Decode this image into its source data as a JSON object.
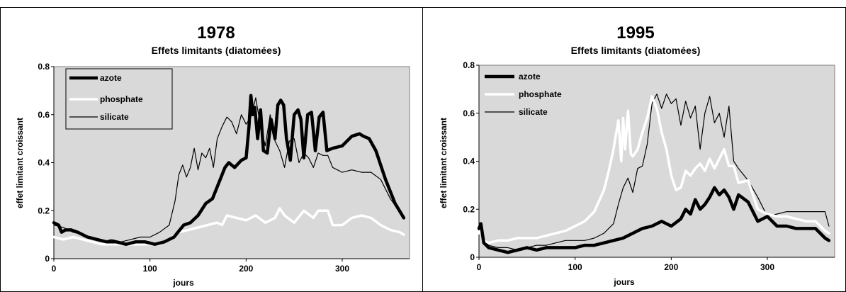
{
  "chart_data": [
    {
      "type": "line",
      "title": "1978",
      "subtitle": "Effets limitants (diatomées)",
      "xlabel": "jours",
      "ylabel": "effet limitant croissant",
      "xlim": [
        0,
        370
      ],
      "ylim": [
        0,
        0.8
      ],
      "xticks": [
        "0",
        "100",
        "200",
        "300"
      ],
      "yticks": [
        "0",
        "0.2",
        "0.4",
        "0.6",
        "0.8"
      ],
      "plot_background": "#d9d9d9",
      "grid": false,
      "legend_position": "top-left",
      "series": [
        {
          "name": "azote",
          "color": "#000000",
          "width": 4.5,
          "x": [
            0,
            5,
            8,
            12,
            18,
            25,
            35,
            45,
            55,
            65,
            75,
            85,
            95,
            105,
            115,
            125,
            135,
            142,
            150,
            158,
            165,
            172,
            178,
            182,
            188,
            195,
            200,
            203,
            205,
            207,
            209,
            212,
            215,
            218,
            222,
            226,
            230,
            233,
            236,
            239,
            242,
            246,
            250,
            254,
            257,
            260,
            264,
            268,
            272,
            276,
            280,
            284,
            290,
            300,
            310,
            318,
            322,
            328,
            335,
            345,
            355,
            364
          ],
          "y": [
            0.15,
            0.14,
            0.11,
            0.12,
            0.12,
            0.11,
            0.09,
            0.08,
            0.07,
            0.07,
            0.06,
            0.07,
            0.07,
            0.06,
            0.07,
            0.09,
            0.14,
            0.15,
            0.18,
            0.23,
            0.25,
            0.32,
            0.38,
            0.4,
            0.38,
            0.41,
            0.42,
            0.55,
            0.68,
            0.6,
            0.63,
            0.5,
            0.62,
            0.45,
            0.44,
            0.58,
            0.5,
            0.64,
            0.66,
            0.64,
            0.5,
            0.41,
            0.6,
            0.62,
            0.58,
            0.42,
            0.6,
            0.61,
            0.45,
            0.59,
            0.61,
            0.45,
            0.46,
            0.47,
            0.51,
            0.52,
            0.51,
            0.5,
            0.45,
            0.33,
            0.23,
            0.17
          ]
        },
        {
          "name": "phosphate",
          "color": "#ffffff",
          "width": 3.5,
          "x": [
            0,
            10,
            20,
            30,
            40,
            50,
            60,
            70,
            80,
            90,
            100,
            110,
            120,
            130,
            140,
            150,
            160,
            170,
            175,
            180,
            190,
            200,
            210,
            220,
            230,
            235,
            240,
            250,
            260,
            270,
            275,
            280,
            285,
            290,
            300,
            310,
            320,
            330,
            340,
            350,
            360,
            364
          ],
          "y": [
            0.09,
            0.08,
            0.09,
            0.08,
            0.07,
            0.06,
            0.06,
            0.06,
            0.06,
            0.06,
            0.06,
            0.06,
            0.08,
            0.11,
            0.12,
            0.13,
            0.14,
            0.15,
            0.14,
            0.18,
            0.17,
            0.16,
            0.18,
            0.15,
            0.17,
            0.21,
            0.18,
            0.15,
            0.2,
            0.17,
            0.2,
            0.2,
            0.2,
            0.14,
            0.14,
            0.17,
            0.18,
            0.17,
            0.14,
            0.12,
            0.11,
            0.1
          ]
        },
        {
          "name": "silicate",
          "color": "#000000",
          "width": 1.2,
          "x": [
            0,
            10,
            20,
            30,
            40,
            50,
            60,
            70,
            80,
            90,
            100,
            110,
            120,
            126,
            130,
            134,
            138,
            142,
            146,
            150,
            154,
            158,
            162,
            166,
            170,
            175,
            180,
            185,
            190,
            195,
            200,
            205,
            210,
            215,
            220,
            225,
            230,
            235,
            240,
            245,
            250,
            255,
            260,
            265,
            270,
            275,
            280,
            285,
            290,
            300,
            310,
            320,
            330,
            340,
            350,
            364
          ],
          "y": [
            0.14,
            0.13,
            0.11,
            0.1,
            0.08,
            0.07,
            0.08,
            0.07,
            0.08,
            0.09,
            0.09,
            0.11,
            0.14,
            0.24,
            0.35,
            0.39,
            0.34,
            0.38,
            0.46,
            0.37,
            0.44,
            0.42,
            0.46,
            0.38,
            0.5,
            0.55,
            0.59,
            0.57,
            0.52,
            0.6,
            0.56,
            0.59,
            0.67,
            0.55,
            0.47,
            0.6,
            0.49,
            0.45,
            0.38,
            0.49,
            0.5,
            0.4,
            0.44,
            0.42,
            0.38,
            0.44,
            0.43,
            0.43,
            0.38,
            0.36,
            0.37,
            0.36,
            0.36,
            0.33,
            0.25,
            0.17
          ]
        }
      ]
    },
    {
      "type": "line",
      "title": "1995",
      "subtitle": "Effets limitants (diatomées)",
      "xlabel": "jours",
      "ylabel": "effet limitant croissant",
      "xlim": [
        0,
        370
      ],
      "ylim": [
        0,
        0.8
      ],
      "xticks": [
        "0",
        "100",
        "200",
        "300"
      ],
      "yticks": [
        "0",
        "0.2",
        "0.4",
        "0.6",
        "0.8"
      ],
      "plot_background": "#d9d9d9",
      "grid": false,
      "legend_position": "top-left",
      "series": [
        {
          "name": "azote",
          "color": "#000000",
          "width": 4.5,
          "x": [
            0,
            2,
            5,
            10,
            20,
            30,
            40,
            50,
            60,
            70,
            80,
            90,
            100,
            110,
            120,
            130,
            140,
            150,
            160,
            170,
            180,
            190,
            200,
            210,
            215,
            220,
            225,
            230,
            235,
            240,
            245,
            250,
            255,
            260,
            265,
            270,
            280,
            290,
            300,
            310,
            320,
            330,
            340,
            350,
            360,
            364
          ],
          "y": [
            0.12,
            0.14,
            0.06,
            0.04,
            0.03,
            0.02,
            0.03,
            0.04,
            0.03,
            0.04,
            0.04,
            0.04,
            0.04,
            0.05,
            0.05,
            0.06,
            0.07,
            0.08,
            0.1,
            0.12,
            0.13,
            0.15,
            0.13,
            0.16,
            0.2,
            0.18,
            0.24,
            0.2,
            0.22,
            0.25,
            0.29,
            0.26,
            0.28,
            0.25,
            0.2,
            0.26,
            0.23,
            0.15,
            0.17,
            0.13,
            0.13,
            0.12,
            0.12,
            0.12,
            0.08,
            0.07
          ]
        },
        {
          "name": "phosphate",
          "color": "#ffffff",
          "width": 3.5,
          "x": [
            0,
            2,
            5,
            10,
            20,
            30,
            40,
            50,
            60,
            70,
            80,
            90,
            100,
            110,
            120,
            130,
            135,
            140,
            145,
            148,
            150,
            152,
            155,
            158,
            160,
            165,
            170,
            175,
            180,
            185,
            190,
            195,
            200,
            205,
            210,
            215,
            220,
            225,
            230,
            235,
            240,
            245,
            250,
            255,
            260,
            265,
            270,
            280,
            290,
            300,
            310,
            320,
            330,
            340,
            350,
            360,
            364
          ],
          "y": [
            0.1,
            0.12,
            0.07,
            0.06,
            0.07,
            0.07,
            0.08,
            0.08,
            0.08,
            0.09,
            0.1,
            0.11,
            0.13,
            0.15,
            0.19,
            0.28,
            0.36,
            0.45,
            0.57,
            0.4,
            0.58,
            0.45,
            0.61,
            0.43,
            0.42,
            0.45,
            0.52,
            0.58,
            0.67,
            0.62,
            0.52,
            0.45,
            0.34,
            0.28,
            0.29,
            0.36,
            0.34,
            0.37,
            0.39,
            0.36,
            0.41,
            0.37,
            0.41,
            0.45,
            0.38,
            0.38,
            0.31,
            0.32,
            0.2,
            0.18,
            0.17,
            0.17,
            0.16,
            0.15,
            0.15,
            0.11,
            0.1
          ]
        },
        {
          "name": "silicate",
          "color": "#000000",
          "width": 1.2,
          "x": [
            0,
            2,
            5,
            10,
            20,
            30,
            40,
            50,
            60,
            70,
            80,
            90,
            100,
            110,
            120,
            130,
            140,
            145,
            150,
            155,
            160,
            165,
            170,
            175,
            180,
            185,
            190,
            195,
            200,
            205,
            210,
            215,
            220,
            225,
            230,
            235,
            240,
            245,
            250,
            255,
            260,
            265,
            270,
            280,
            290,
            300,
            310,
            320,
            330,
            340,
            350,
            360,
            364
          ],
          "y": [
            0.12,
            0.14,
            0.07,
            0.05,
            0.04,
            0.04,
            0.03,
            0.04,
            0.05,
            0.05,
            0.06,
            0.07,
            0.07,
            0.07,
            0.08,
            0.1,
            0.14,
            0.22,
            0.29,
            0.33,
            0.27,
            0.37,
            0.38,
            0.47,
            0.64,
            0.68,
            0.62,
            0.68,
            0.64,
            0.66,
            0.55,
            0.65,
            0.58,
            0.63,
            0.45,
            0.6,
            0.67,
            0.56,
            0.6,
            0.5,
            0.63,
            0.4,
            0.37,
            0.32,
            0.25,
            0.17,
            0.18,
            0.19,
            0.19,
            0.19,
            0.19,
            0.19,
            0.13
          ]
        }
      ]
    }
  ]
}
